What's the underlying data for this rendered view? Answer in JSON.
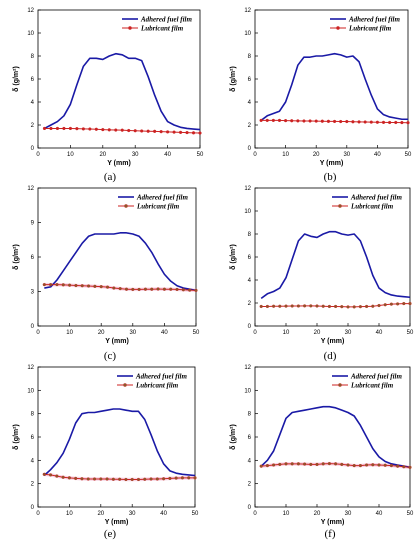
{
  "colors": {
    "adhered": "#1a1aa6",
    "lubricant": "#cc2222",
    "lubricant_marker_alt": "#8a5a2a",
    "band": "#f2c4d8"
  },
  "chart_data": [
    {
      "type": "line",
      "panel": "(a)",
      "xlabel": "Y (mm)",
      "ylabel": "δ (g/m²)",
      "xlim": [
        0,
        50
      ],
      "ylim": [
        0,
        12
      ],
      "xticks": [
        "0",
        "10",
        "20",
        "30",
        "40",
        "50"
      ],
      "yticks": [
        "0",
        "2",
        "4",
        "6",
        "8",
        "10",
        "12"
      ],
      "legend": [
        "Adhered fuel film",
        "Lubricant film"
      ],
      "series": [
        {
          "name": "Adhered fuel film",
          "x": [
            2,
            4,
            6,
            8,
            10,
            12,
            14,
            16,
            18,
            20,
            22,
            24,
            26,
            28,
            30,
            32,
            34,
            36,
            38,
            40,
            42,
            44,
            46,
            48,
            50
          ],
          "values": [
            1.7,
            2.0,
            2.3,
            2.8,
            3.8,
            5.5,
            7.1,
            7.8,
            7.8,
            7.7,
            8.0,
            8.2,
            8.1,
            7.8,
            7.8,
            7.6,
            6.2,
            4.6,
            3.2,
            2.3,
            2.0,
            1.8,
            1.7,
            1.65,
            1.6
          ]
        },
        {
          "name": "Lubricant film",
          "x": [
            2,
            4,
            6,
            8,
            10,
            12,
            14,
            16,
            18,
            20,
            22,
            24,
            26,
            28,
            30,
            32,
            34,
            36,
            38,
            40,
            42,
            44,
            46,
            48,
            50
          ],
          "values": [
            1.7,
            1.7,
            1.7,
            1.7,
            1.7,
            1.68,
            1.66,
            1.65,
            1.63,
            1.6,
            1.58,
            1.56,
            1.55,
            1.52,
            1.5,
            1.48,
            1.46,
            1.45,
            1.42,
            1.4,
            1.38,
            1.36,
            1.34,
            1.32,
            1.3
          ]
        }
      ]
    },
    {
      "type": "line",
      "panel": "(b)",
      "xlabel": "Y (mm)",
      "ylabel": "δ (g/m²)",
      "xlim": [
        0,
        50
      ],
      "ylim": [
        0,
        12
      ],
      "xticks": [
        "0",
        "10",
        "20",
        "30",
        "40",
        "50"
      ],
      "yticks": [
        "0",
        "2",
        "4",
        "6",
        "8",
        "10",
        "12"
      ],
      "legend": [
        "Adhered fuel film",
        "Lubricant film"
      ],
      "series": [
        {
          "name": "Adhered fuel film",
          "x": [
            2,
            4,
            6,
            8,
            10,
            12,
            14,
            16,
            18,
            20,
            22,
            24,
            26,
            28,
            30,
            32,
            34,
            36,
            38,
            40,
            42,
            44,
            46,
            48,
            50
          ],
          "values": [
            2.4,
            2.8,
            3.0,
            3.2,
            4.0,
            5.5,
            7.2,
            7.9,
            7.9,
            8.0,
            8.0,
            8.1,
            8.2,
            8.1,
            7.9,
            8.0,
            7.5,
            6.0,
            4.6,
            3.4,
            2.9,
            2.7,
            2.6,
            2.5,
            2.5
          ]
        },
        {
          "name": "Lubricant film",
          "x": [
            2,
            4,
            6,
            8,
            10,
            12,
            14,
            16,
            18,
            20,
            22,
            24,
            26,
            28,
            30,
            32,
            34,
            36,
            38,
            40,
            42,
            44,
            46,
            48,
            50
          ],
          "values": [
            2.4,
            2.4,
            2.4,
            2.4,
            2.38,
            2.37,
            2.36,
            2.35,
            2.35,
            2.34,
            2.33,
            2.32,
            2.31,
            2.3,
            2.3,
            2.28,
            2.27,
            2.26,
            2.25,
            2.24,
            2.23,
            2.22,
            2.22,
            2.21,
            2.2
          ]
        }
      ]
    },
    {
      "type": "line",
      "panel": "(c)",
      "xlabel": "Y (mm)",
      "ylabel": "δ (g/m²)",
      "xlim": [
        0,
        50
      ],
      "ylim": [
        0,
        12
      ],
      "xticks": [
        "0",
        "10",
        "20",
        "30",
        "40",
        "50"
      ],
      "yticks": [
        "0",
        "3",
        "6",
        "9",
        "12"
      ],
      "legend": [
        "Adhered fuel film",
        "Lubricant film"
      ],
      "series": [
        {
          "name": "Adhered fuel film",
          "x": [
            2,
            4,
            6,
            8,
            10,
            12,
            14,
            16,
            18,
            20,
            22,
            24,
            26,
            28,
            30,
            32,
            34,
            36,
            38,
            40,
            42,
            44,
            46,
            48,
            50
          ],
          "values": [
            3.3,
            3.4,
            4.0,
            4.8,
            5.6,
            6.4,
            7.2,
            7.8,
            8.0,
            8.0,
            8.0,
            8.0,
            8.1,
            8.1,
            8.0,
            7.8,
            7.2,
            6.4,
            5.4,
            4.5,
            3.9,
            3.5,
            3.3,
            3.2,
            3.1
          ]
        },
        {
          "name": "Lubricant film",
          "x": [
            2,
            4,
            6,
            8,
            10,
            12,
            14,
            16,
            18,
            20,
            22,
            24,
            26,
            28,
            30,
            32,
            34,
            36,
            38,
            40,
            42,
            44,
            46,
            48,
            50
          ],
          "values": [
            3.6,
            3.6,
            3.6,
            3.58,
            3.55,
            3.52,
            3.5,
            3.48,
            3.45,
            3.42,
            3.38,
            3.3,
            3.25,
            3.2,
            3.18,
            3.18,
            3.2,
            3.2,
            3.22,
            3.2,
            3.2,
            3.18,
            3.15,
            3.12,
            3.1
          ]
        }
      ]
    },
    {
      "type": "line",
      "panel": "(d)",
      "xlabel": "Y (mm)",
      "ylabel": "δ (g/m²)",
      "xlim": [
        0,
        50
      ],
      "ylim": [
        0,
        12
      ],
      "xticks": [
        "0",
        "10",
        "20",
        "30",
        "40",
        "50"
      ],
      "yticks": [
        "0",
        "2",
        "4",
        "6",
        "8",
        "10",
        "12"
      ],
      "legend": [
        "Adhered fuel film",
        "Lubricant film"
      ],
      "series": [
        {
          "name": "Adhered fuel film",
          "x": [
            2,
            4,
            6,
            8,
            10,
            12,
            14,
            16,
            18,
            20,
            22,
            24,
            26,
            28,
            30,
            32,
            34,
            36,
            38,
            40,
            42,
            44,
            46,
            48,
            50
          ],
          "values": [
            2.4,
            2.8,
            3.0,
            3.3,
            4.2,
            5.8,
            7.4,
            8.0,
            7.8,
            7.7,
            8.0,
            8.2,
            8.2,
            8.0,
            7.9,
            8.0,
            7.4,
            6.0,
            4.4,
            3.3,
            2.9,
            2.7,
            2.6,
            2.55,
            2.5
          ]
        },
        {
          "name": "Lubricant film",
          "x": [
            2,
            4,
            6,
            8,
            10,
            12,
            14,
            16,
            18,
            20,
            22,
            24,
            26,
            28,
            30,
            32,
            34,
            36,
            38,
            40,
            42,
            44,
            46,
            48,
            50
          ],
          "values": [
            1.7,
            1.7,
            1.72,
            1.72,
            1.73,
            1.74,
            1.74,
            1.75,
            1.75,
            1.74,
            1.72,
            1.7,
            1.7,
            1.68,
            1.66,
            1.66,
            1.68,
            1.7,
            1.72,
            1.78,
            1.85,
            1.9,
            1.92,
            1.95,
            1.95
          ]
        }
      ]
    },
    {
      "type": "line",
      "panel": "(e)",
      "xlabel": "Y (mm)",
      "ylabel": "δ (g/m²)",
      "xlim": [
        0,
        50
      ],
      "ylim": [
        0,
        12
      ],
      "xticks": [
        "0",
        "10",
        "20",
        "30",
        "40",
        "50"
      ],
      "yticks": [
        "0",
        "2",
        "4",
        "6",
        "8",
        "10",
        "12"
      ],
      "legend": [
        "Adhered fuel film",
        "Lubricant film"
      ],
      "series": [
        {
          "name": "Adhered fuel film",
          "x": [
            2,
            4,
            6,
            8,
            10,
            12,
            14,
            16,
            18,
            20,
            22,
            24,
            26,
            28,
            30,
            32,
            34,
            36,
            38,
            40,
            42,
            44,
            46,
            48,
            50
          ],
          "values": [
            2.7,
            3.2,
            3.8,
            4.6,
            5.8,
            7.2,
            8.0,
            8.1,
            8.1,
            8.2,
            8.3,
            8.4,
            8.4,
            8.3,
            8.2,
            8.2,
            7.5,
            6.2,
            4.8,
            3.7,
            3.1,
            2.9,
            2.8,
            2.75,
            2.7
          ]
        },
        {
          "name": "Lubricant film",
          "x": [
            2,
            4,
            6,
            8,
            10,
            12,
            14,
            16,
            18,
            20,
            22,
            24,
            26,
            28,
            30,
            32,
            34,
            36,
            38,
            40,
            42,
            44,
            46,
            48,
            50
          ],
          "values": [
            2.8,
            2.75,
            2.65,
            2.55,
            2.5,
            2.45,
            2.42,
            2.4,
            2.4,
            2.4,
            2.4,
            2.38,
            2.38,
            2.36,
            2.36,
            2.36,
            2.38,
            2.4,
            2.4,
            2.42,
            2.45,
            2.48,
            2.5,
            2.5,
            2.5
          ]
        }
      ]
    },
    {
      "type": "line",
      "panel": "(f)",
      "xlabel": "Y (mm)",
      "ylabel": "δ (g/m²)",
      "xlim": [
        0,
        50
      ],
      "ylim": [
        0,
        12
      ],
      "xticks": [
        "0",
        "10",
        "20",
        "30",
        "40",
        "50"
      ],
      "yticks": [
        "0",
        "2",
        "4",
        "6",
        "8",
        "10",
        "12"
      ],
      "legend": [
        "Adhered fuel film",
        "Lubricant film"
      ],
      "series": [
        {
          "name": "Adhered fuel film",
          "x": [
            2,
            4,
            6,
            8,
            10,
            12,
            14,
            16,
            18,
            20,
            22,
            24,
            26,
            28,
            30,
            32,
            34,
            36,
            38,
            40,
            42,
            44,
            46,
            48,
            50
          ],
          "values": [
            3.5,
            4.0,
            4.8,
            6.2,
            7.6,
            8.1,
            8.2,
            8.3,
            8.4,
            8.5,
            8.6,
            8.6,
            8.5,
            8.3,
            8.1,
            7.8,
            7.0,
            6.0,
            5.0,
            4.3,
            3.9,
            3.7,
            3.6,
            3.5,
            3.4
          ]
        },
        {
          "name": "Lubricant film",
          "x": [
            2,
            4,
            6,
            8,
            10,
            12,
            14,
            16,
            18,
            20,
            22,
            24,
            26,
            28,
            30,
            32,
            34,
            36,
            38,
            40,
            42,
            44,
            46,
            48,
            50
          ],
          "values": [
            3.5,
            3.55,
            3.6,
            3.65,
            3.7,
            3.7,
            3.7,
            3.68,
            3.65,
            3.65,
            3.7,
            3.72,
            3.7,
            3.65,
            3.6,
            3.55,
            3.55,
            3.6,
            3.62,
            3.6,
            3.58,
            3.55,
            3.5,
            3.45,
            3.4
          ]
        }
      ]
    }
  ]
}
